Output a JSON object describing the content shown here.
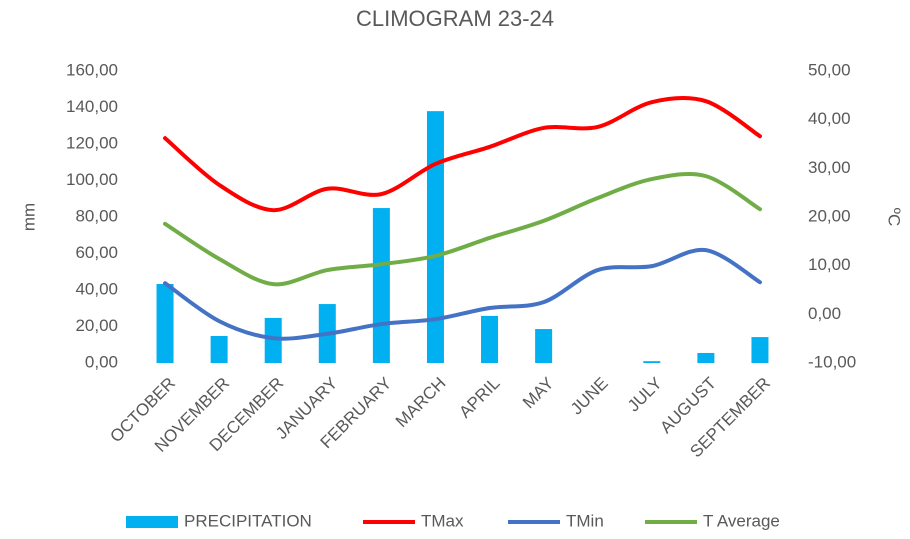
{
  "chart_data": {
    "type": "bar-line",
    "title": "CLIMOGRAM 23-24",
    "ylabel": "mm",
    "y2label": "ºC",
    "categories": [
      "OCTOBER",
      "NOVEMBER",
      "DECEMBER",
      "JANUARY",
      "FEBRUARY",
      "MARCH",
      "APRIL",
      "MAY",
      "JUNE",
      "JULY",
      "AUGUST",
      "SEPTEMBER"
    ],
    "series": [
      {
        "name": "PRECIPITATION",
        "type": "bar",
        "color": "#00b0f0",
        "axis": "y",
        "values": [
          43.3,
          14.8,
          24.7,
          32.3,
          84.9,
          138,
          25.8,
          18.6,
          0,
          1,
          5.5,
          14.2
        ]
      },
      {
        "name": "TMax",
        "type": "line",
        "color": "#ff0000",
        "axis": "y2",
        "values": [
          36.2,
          26.6,
          21.4,
          25.8,
          24.7,
          30.9,
          34.4,
          38.3,
          38.5,
          43.6,
          43.8,
          36.6
        ]
      },
      {
        "name": "TMin",
        "type": "line",
        "color": "#4472c4",
        "axis": "y2",
        "values": [
          6.4,
          -1.4,
          -4.9,
          -4.0,
          -2.0,
          -1.0,
          1.3,
          2.5,
          9.1,
          9.9,
          13.2,
          6.6
        ]
      },
      {
        "name": "T Average",
        "type": "line",
        "color": "#70ad47",
        "axis": "y2",
        "values": [
          18.6,
          11.4,
          6.2,
          9.1,
          10.3,
          12.0,
          15.7,
          19.2,
          23.9,
          27.8,
          28.4,
          21.6
        ]
      }
    ],
    "ylim": [
      0,
      160
    ],
    "yticks": [
      {
        "value": 0,
        "label": "0,00"
      },
      {
        "value": 20,
        "label": "20,00"
      },
      {
        "value": 40,
        "label": "40,00"
      },
      {
        "value": 60,
        "label": "60,00"
      },
      {
        "value": 80,
        "label": "80,00"
      },
      {
        "value": 100,
        "label": "100,00"
      },
      {
        "value": 120,
        "label": "120,00"
      },
      {
        "value": 140,
        "label": "140,00"
      },
      {
        "value": 160,
        "label": "160,00"
      }
    ],
    "y2lim": [
      -10,
      50
    ],
    "y2ticks": [
      {
        "value": -10,
        "label": "-10,00"
      },
      {
        "value": 0,
        "label": "0,00"
      },
      {
        "value": 10,
        "label": "10,00"
      },
      {
        "value": 20,
        "label": "20,00"
      },
      {
        "value": 30,
        "label": "30,00"
      },
      {
        "value": 40,
        "label": "40,00"
      },
      {
        "value": 50,
        "label": "50,00"
      }
    ],
    "legend": "bottom"
  }
}
